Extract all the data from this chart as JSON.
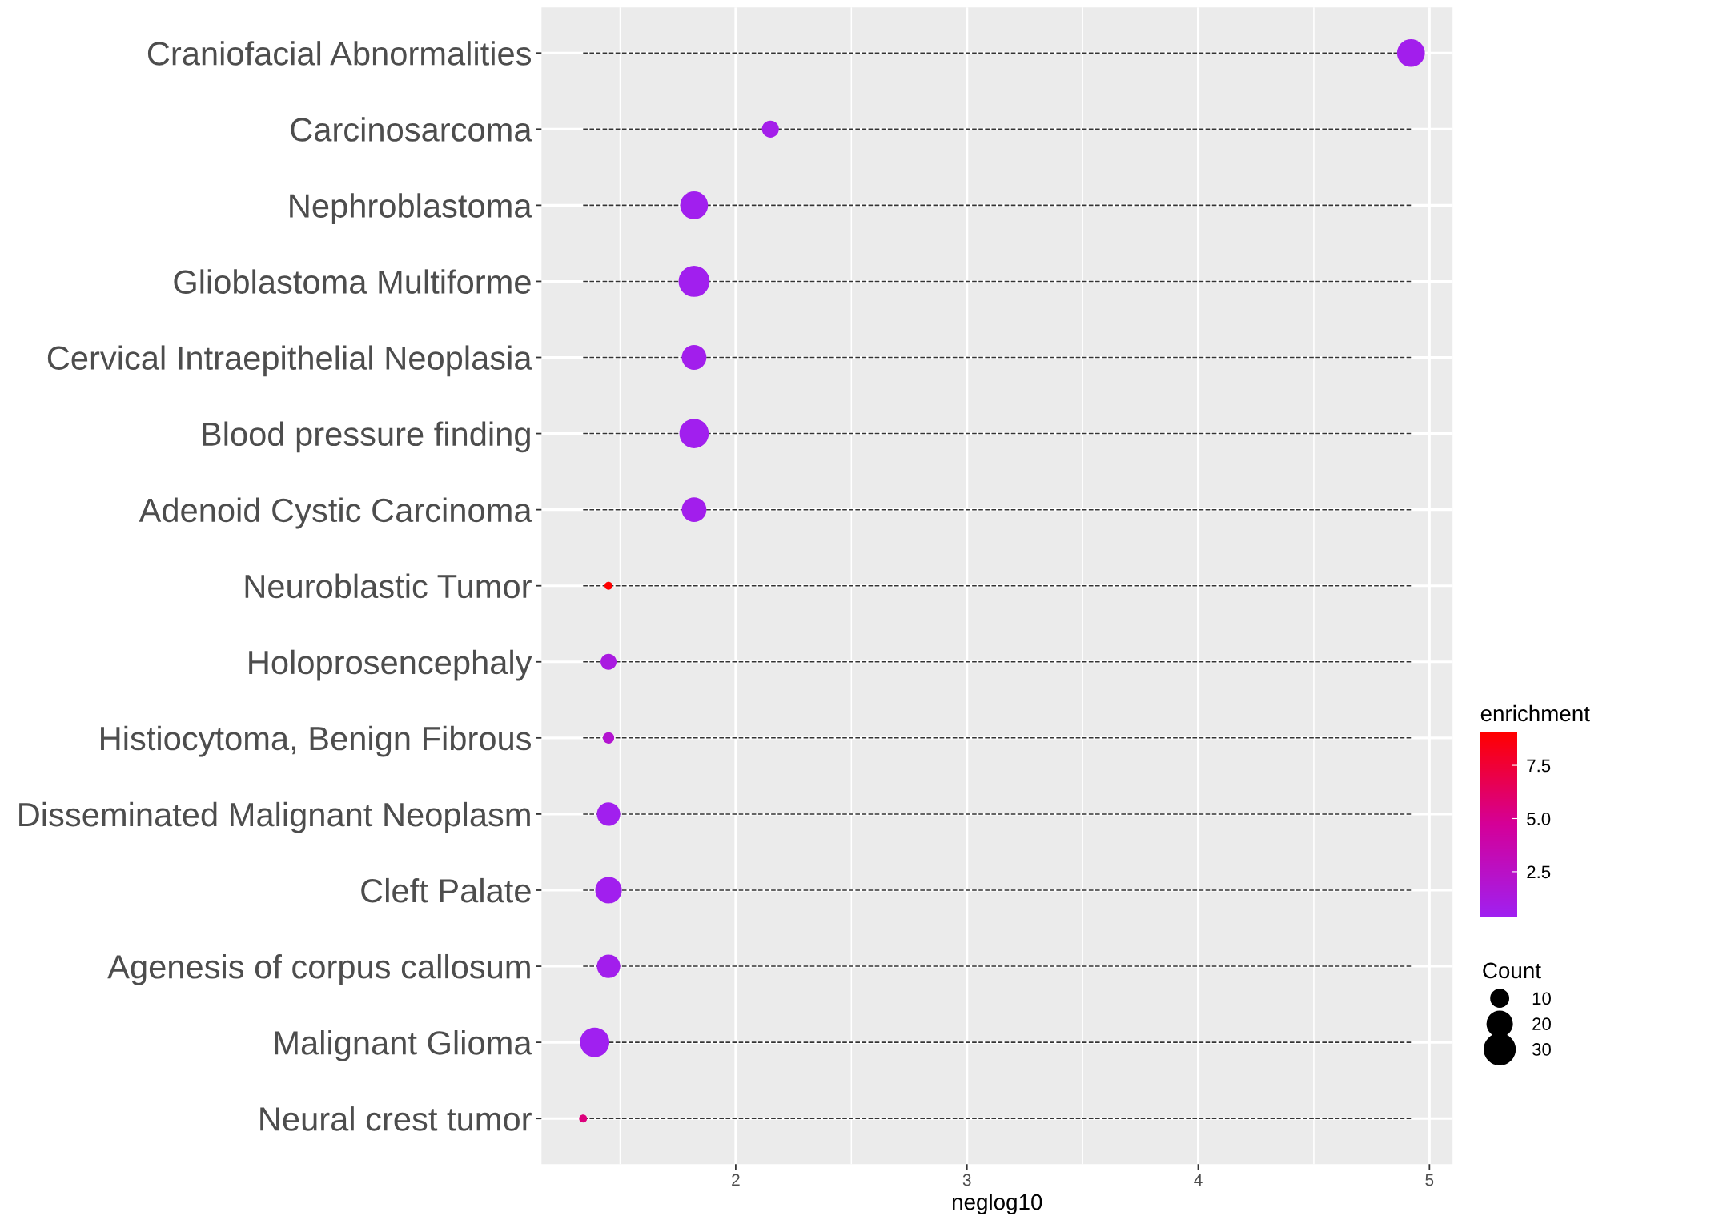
{
  "chart_data": {
    "type": "bubble",
    "xlabel": "neglog10",
    "clabel": "enrichment",
    "legend_title": "Count",
    "categories": [
      "Craniofacial Abnormalities",
      "Carcinosarcoma",
      "Nephroblastoma",
      "Glioblastoma Multiforme",
      "Cervical Intraepithelial Neoplasia",
      "Blood pressure finding",
      "Adenoid Cystic Carcinoma",
      "Neuroblastic Tumor",
      "Holoprosencephaly",
      "Histiocytoma, Benign Fibrous",
      "Disseminated Malignant Neoplasm",
      "Cleft Palate",
      "Agenesis of corpus callosum",
      "Malignant Glioma",
      "Neural crest tumor"
    ],
    "values": [
      4.92,
      2.15,
      1.82,
      1.82,
      1.82,
      1.82,
      1.82,
      1.45,
      1.45,
      1.45,
      1.45,
      1.45,
      1.45,
      1.39,
      1.34
    ],
    "sizes": [
      24,
      9,
      24,
      30,
      19,
      27,
      19,
      2,
      8,
      4,
      17,
      22,
      17,
      27,
      2
    ],
    "cvalues": [
      0.6,
      0.7,
      0.5,
      0.5,
      0.6,
      0.5,
      0.6,
      9.05,
      1.2,
      2.0,
      0.5,
      0.5,
      0.6,
      0.39,
      5.5
    ],
    "size_legend": [
      10,
      20,
      30
    ],
    "clim": [
      0.39,
      9.05
    ],
    "cticks": [
      2.5,
      {
        "value": 5,
        "label": "5.0"
      },
      7.5
    ],
    "xlim": [
      1.16,
      5.1
    ],
    "xticks": [
      {
        "value": 1.5,
        "label": null
      },
      2,
      {
        "value": 2.5,
        "label": null
      },
      3,
      {
        "value": 3.5,
        "label": null
      },
      4,
      {
        "value": 4.5,
        "label": null
      },
      5
    ],
    "grid": true,
    "line_style": "dashed",
    "orientation": "horizontal"
  }
}
